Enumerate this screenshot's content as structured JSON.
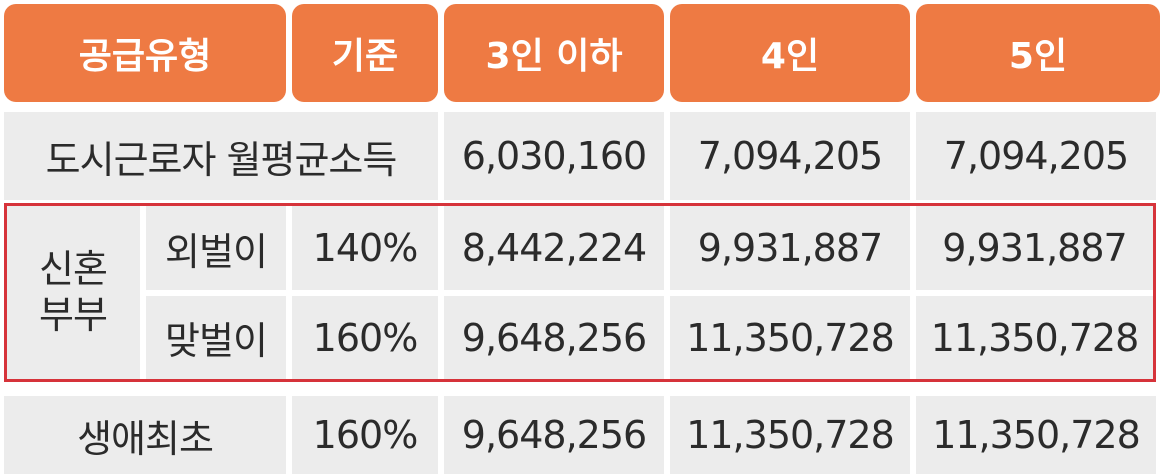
{
  "header": [
    "공급유형",
    "기준",
    "3인 이하",
    "4인",
    "5인"
  ],
  "row_urban": {
    "label": "도시근로자 월평균소득",
    "values": [
      "6,030,160",
      "7,094,205",
      "7,094,205"
    ]
  },
  "newlywed": {
    "label_line1": "신혼",
    "label_line2": "부부",
    "rows": [
      {
        "type": "외벌이",
        "standard": "140%",
        "values": [
          "8,442,224",
          "9,931,887",
          "9,931,887"
        ]
      },
      {
        "type": "맞벌이",
        "standard": "160%",
        "values": [
          "9,648,256",
          "11,350,728",
          "11,350,728"
        ]
      }
    ]
  },
  "row_first": {
    "label": "생애최초",
    "standard": "160%",
    "values": [
      "9,648,256",
      "11,350,728",
      "11,350,728"
    ]
  },
  "colors": {
    "header_bg": "#ee7a43",
    "cell_bg": "#ececec",
    "highlight_border": "#d6333a"
  }
}
